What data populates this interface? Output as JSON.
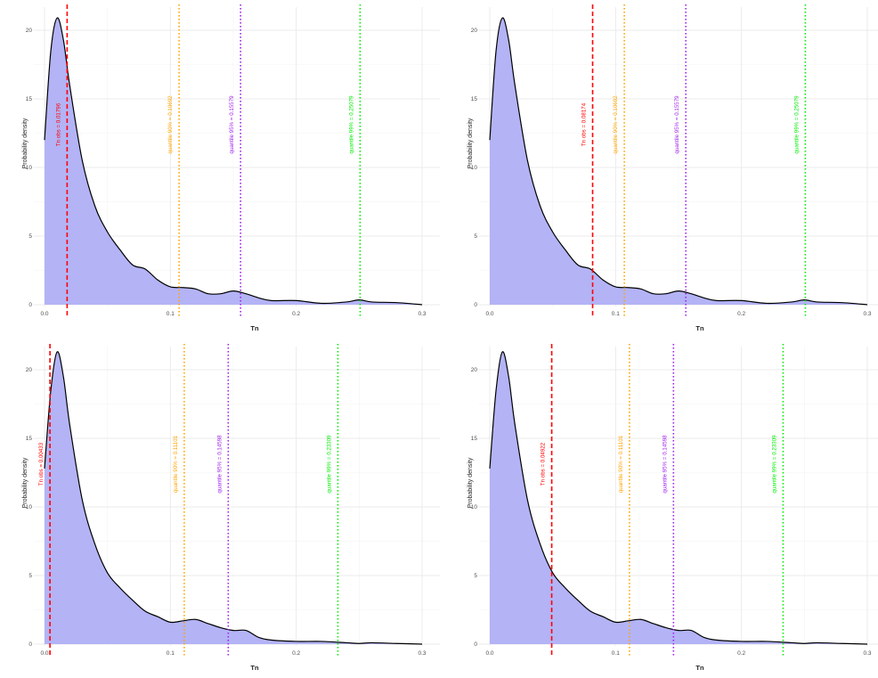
{
  "colors": {
    "fill": "#b3b3f6",
    "outline": "#000000",
    "tn_obs": "#ff0000",
    "q90": "#ffa500",
    "q95": "#a020f0",
    "q99": "#00ee00",
    "grid": "#ebebeb"
  },
  "chart_data": [
    {
      "type": "area",
      "xlabel": "Tn",
      "ylabel": "Probability density",
      "xlim": [
        0.0,
        0.3
      ],
      "ylim": [
        0,
        21
      ],
      "xticks": [
        "0.0",
        "0.1",
        "0.2",
        "0.3"
      ],
      "yticks": [
        "0",
        "5",
        "10",
        "15",
        "20"
      ],
      "grid": true,
      "density": {
        "x": [
          0.0,
          0.005,
          0.01,
          0.015,
          0.02,
          0.03,
          0.04,
          0.05,
          0.06,
          0.07,
          0.08,
          0.09,
          0.1,
          0.11,
          0.12,
          0.13,
          0.14,
          0.15,
          0.16,
          0.17,
          0.18,
          0.2,
          0.22,
          0.24,
          0.25,
          0.26,
          0.28,
          0.3
        ],
        "y": [
          12.0,
          18.5,
          20.9,
          19.3,
          16.0,
          10.5,
          7.2,
          5.3,
          4.0,
          2.9,
          2.6,
          1.8,
          1.3,
          1.25,
          1.15,
          0.8,
          0.8,
          1.0,
          0.8,
          0.5,
          0.3,
          0.3,
          0.1,
          0.2,
          0.35,
          0.2,
          0.15,
          0.0
        ]
      },
      "vlines": [
        {
          "x": 0.01796,
          "label": "Tn obs = 0.01796",
          "kind": "tn_obs"
        },
        {
          "x": 0.10692,
          "label": "quantile 90% = 0.10692",
          "kind": "q90"
        },
        {
          "x": 0.15579,
          "label": "quantile 95% = 0.15579",
          "kind": "q95"
        },
        {
          "x": 0.25079,
          "label": "quantile 99% = 0.25079",
          "kind": "q99"
        }
      ]
    },
    {
      "type": "area",
      "xlabel": "Tn",
      "ylabel": "Probability density",
      "xlim": [
        0.0,
        0.3
      ],
      "ylim": [
        0,
        21
      ],
      "xticks": [
        "0.0",
        "0.1",
        "0.2",
        "0.3"
      ],
      "yticks": [
        "0",
        "5",
        "10",
        "15",
        "20"
      ],
      "grid": true,
      "density": {
        "x": [
          0.0,
          0.005,
          0.01,
          0.015,
          0.02,
          0.03,
          0.04,
          0.05,
          0.06,
          0.07,
          0.08,
          0.09,
          0.1,
          0.11,
          0.12,
          0.13,
          0.14,
          0.15,
          0.16,
          0.17,
          0.18,
          0.2,
          0.22,
          0.24,
          0.25,
          0.26,
          0.28,
          0.3
        ],
        "y": [
          12.0,
          18.5,
          20.9,
          19.3,
          16.0,
          10.5,
          7.2,
          5.3,
          4.0,
          2.9,
          2.6,
          1.8,
          1.3,
          1.25,
          1.15,
          0.8,
          0.8,
          1.0,
          0.8,
          0.5,
          0.3,
          0.3,
          0.1,
          0.2,
          0.35,
          0.2,
          0.15,
          0.0
        ]
      },
      "vlines": [
        {
          "x": 0.08174,
          "label": "Tn obs = 0.08174",
          "kind": "tn_obs"
        },
        {
          "x": 0.10692,
          "label": "quantile 90% = 0.10692",
          "kind": "q90"
        },
        {
          "x": 0.15579,
          "label": "quantile 95% = 0.15579",
          "kind": "q95"
        },
        {
          "x": 0.25079,
          "label": "quantile 99% = 0.25079",
          "kind": "q99"
        }
      ]
    },
    {
      "type": "area",
      "xlabel": "Tn",
      "ylabel": "Probability density",
      "xlim": [
        0.0,
        0.3
      ],
      "ylim": [
        0,
        21
      ],
      "xticks": [
        "0.0",
        "0.1",
        "0.2",
        "0.3"
      ],
      "yticks": [
        "0",
        "5",
        "10",
        "15",
        "20"
      ],
      "grid": true,
      "density": {
        "x": [
          0.0,
          0.005,
          0.01,
          0.015,
          0.02,
          0.03,
          0.04,
          0.05,
          0.06,
          0.07,
          0.08,
          0.09,
          0.1,
          0.11,
          0.12,
          0.13,
          0.14,
          0.15,
          0.16,
          0.17,
          0.18,
          0.2,
          0.22,
          0.24,
          0.25,
          0.26,
          0.28,
          0.3
        ],
        "y": [
          12.8,
          18.5,
          21.3,
          19.5,
          16.0,
          10.5,
          7.3,
          5.2,
          4.1,
          3.2,
          2.4,
          2.0,
          1.6,
          1.7,
          1.8,
          1.5,
          1.2,
          1.0,
          1.0,
          0.5,
          0.3,
          0.2,
          0.2,
          0.1,
          0.05,
          0.1,
          0.05,
          0.0
        ]
      },
      "vlines": [
        {
          "x": 0.00433,
          "label": "Tn obs = 0.00433",
          "kind": "tn_obs"
        },
        {
          "x": 0.11101,
          "label": "quantile 90% = 0.11101",
          "kind": "q90"
        },
        {
          "x": 0.14598,
          "label": "quantile 95% = 0.14598",
          "kind": "q95"
        },
        {
          "x": 0.23309,
          "label": "quantile 99% = 0.23309",
          "kind": "q99"
        }
      ]
    },
    {
      "type": "area",
      "xlabel": "Tn",
      "ylabel": "Probability density",
      "xlim": [
        0.0,
        0.3
      ],
      "ylim": [
        0,
        21
      ],
      "xticks": [
        "0.0",
        "0.1",
        "0.2",
        "0.3"
      ],
      "yticks": [
        "0",
        "5",
        "10",
        "15",
        "20"
      ],
      "grid": true,
      "density": {
        "x": [
          0.0,
          0.005,
          0.01,
          0.015,
          0.02,
          0.03,
          0.04,
          0.05,
          0.06,
          0.07,
          0.08,
          0.09,
          0.1,
          0.11,
          0.12,
          0.13,
          0.14,
          0.15,
          0.16,
          0.17,
          0.18,
          0.2,
          0.22,
          0.24,
          0.25,
          0.26,
          0.28,
          0.3
        ],
        "y": [
          12.8,
          18.5,
          21.3,
          19.5,
          16.0,
          10.5,
          7.3,
          5.2,
          4.1,
          3.2,
          2.4,
          2.0,
          1.6,
          1.7,
          1.8,
          1.5,
          1.2,
          1.0,
          1.0,
          0.5,
          0.3,
          0.2,
          0.2,
          0.1,
          0.05,
          0.1,
          0.05,
          0.0
        ]
      },
      "vlines": [
        {
          "x": 0.04922,
          "label": "Tn obs = 0.04922",
          "kind": "tn_obs"
        },
        {
          "x": 0.11101,
          "label": "quantile 90% = 0.11101",
          "kind": "q90"
        },
        {
          "x": 0.14598,
          "label": "quantile 95% = 0.14598",
          "kind": "q95"
        },
        {
          "x": 0.23309,
          "label": "quantile 99% = 0.23309",
          "kind": "q99"
        }
      ]
    }
  ]
}
